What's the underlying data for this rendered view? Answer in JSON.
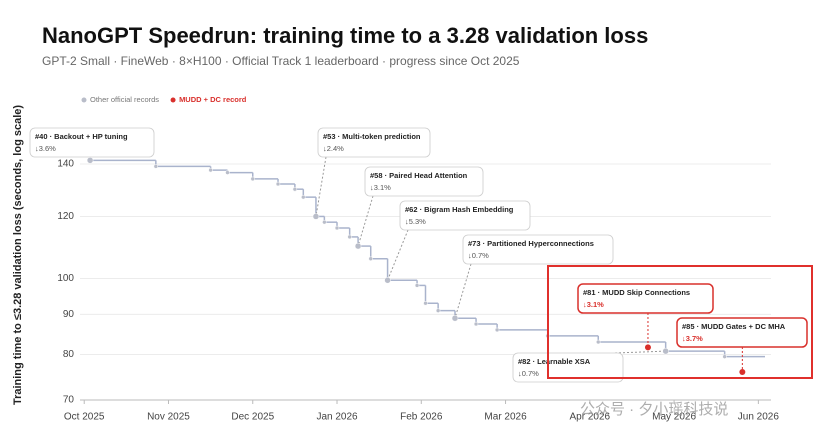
{
  "chart_data": {
    "type": "step",
    "title": "NanoGPT Speedrun: training time to a 3.28 validation loss",
    "subtitle": "GPT-2 Small · FineWeb · 8×H100 · Official Track 1 leaderboard · progress since Oct 2025",
    "y_label": "Training time to ≤3.28 validation loss (seconds, log scale)",
    "log_y": true,
    "grid": true,
    "xlim": [
      -0.05,
      8.15
    ],
    "xticks": [
      {
        "value": 0,
        "label": "Oct 2025"
      },
      {
        "value": 1,
        "label": "Nov 2025"
      },
      {
        "value": 2,
        "label": "Dec 2025"
      },
      {
        "value": 3,
        "label": "Jan 2026"
      },
      {
        "value": 4,
        "label": "Feb 2026"
      },
      {
        "value": 5,
        "label": "Mar 2026"
      },
      {
        "value": 6,
        "label": "Apr 2026"
      },
      {
        "value": 7,
        "label": "May 2026"
      },
      {
        "value": 8,
        "label": "Jun 2026"
      }
    ],
    "ylim": [
      70,
      165
    ],
    "yticks": [
      70,
      80,
      90,
      100,
      120,
      140
    ],
    "series": [
      {
        "name": "Other official records",
        "color": "#b9bdc9",
        "x": [
          0.07,
          0.85,
          1.5,
          1.7,
          2.0,
          2.3,
          2.5,
          2.6,
          2.75,
          2.85,
          3.0,
          3.15,
          3.25,
          3.4,
          3.6,
          3.95,
          4.05,
          4.2,
          4.4,
          4.65,
          4.9,
          5.5,
          6.1,
          6.9,
          7.6
        ],
        "values": [
          141.5,
          139,
          137.5,
          136.5,
          134,
          132,
          130,
          127,
          120,
          118,
          116,
          113,
          110,
          106,
          99.5,
          98,
          93,
          91,
          89,
          87.5,
          86,
          84.5,
          83,
          80.8,
          79.5
        ],
        "labels": [
          "#40 · Backout + HP tuning",
          null,
          null,
          null,
          null,
          null,
          null,
          null,
          "#53 · Multi-token prediction",
          null,
          null,
          null,
          "#58 · Paired Head Attention",
          null,
          "#62 · Bigram Hash Embedding",
          null,
          null,
          null,
          "#73 · Partitioned Hyperconnections",
          null,
          null,
          null,
          null,
          "#82 · Learnable XSA",
          null
        ],
        "notes": [
          "↓3.6%",
          null,
          null,
          null,
          null,
          null,
          null,
          null,
          "↓2.4%",
          null,
          null,
          null,
          "↓3.1%",
          null,
          "↓5.3%",
          null,
          null,
          null,
          "↓0.7%",
          null,
          null,
          null,
          null,
          "↓0.7%",
          null
        ]
      },
      {
        "name": "MUDD + DC record",
        "color": "#d9302c",
        "x": [
          6.69,
          7.81
        ],
        "values": [
          81.7,
          76
        ],
        "labels": [
          "#81 · MUDD Skip Connections",
          "#85 · MUDD Gates + DC MHA"
        ],
        "notes": [
          "↓3.1%",
          "↓3.7%"
        ]
      }
    ],
    "watermark": "公众号 · 夕小瑶科技说"
  }
}
